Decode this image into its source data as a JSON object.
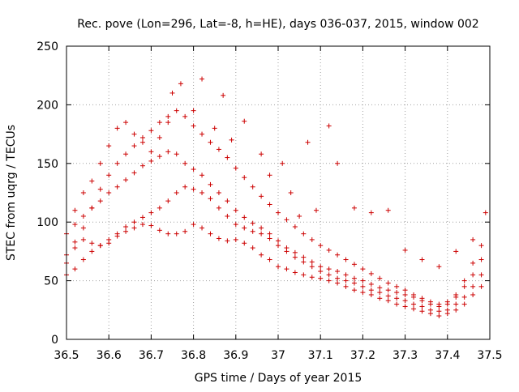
{
  "chart_data": {
    "type": "scatter",
    "title": "Rec. pove (Lon=296, Lat=-8, h=HE), days 036-037, 2015, window 002",
    "xlabel": "GPS time / Days of year 2015",
    "ylabel": "STEC from uqrg / TECUs",
    "xlim": [
      36.5,
      37.5
    ],
    "ylim": [
      0,
      250
    ],
    "xticks": [
      "36.5",
      "36.6",
      "36.7",
      "36.8",
      "36.9",
      "37",
      "37.1",
      "37.2",
      "37.3",
      "37.4",
      "37.5"
    ],
    "yticks": [
      "0",
      "50",
      "100",
      "150",
      "200",
      "250"
    ],
    "grid": true,
    "marker": "+",
    "color": "#cc0000",
    "series": [
      {
        "points": [
          [
            36.5,
            72
          ],
          [
            36.52,
            83
          ],
          [
            36.54,
            85
          ],
          [
            36.56,
            82
          ],
          [
            36.58,
            80
          ],
          [
            36.6,
            82
          ],
          [
            36.62,
            88
          ],
          [
            36.64,
            92
          ],
          [
            36.66,
            95
          ],
          [
            36.68,
            98
          ],
          [
            36.7,
            97
          ],
          [
            36.72,
            93
          ],
          [
            36.74,
            90
          ],
          [
            36.76,
            90
          ],
          [
            36.78,
            92
          ],
          [
            36.8,
            98
          ],
          [
            36.82,
            95
          ],
          [
            36.84,
            90
          ],
          [
            36.86,
            86
          ],
          [
            36.88,
            84
          ],
          [
            36.9,
            85
          ],
          [
            36.92,
            82
          ],
          [
            36.94,
            78
          ],
          [
            36.96,
            72
          ],
          [
            36.98,
            68
          ],
          [
            37.0,
            62
          ],
          [
            37.02,
            60
          ],
          [
            37.04,
            57
          ],
          [
            37.06,
            55
          ],
          [
            37.08,
            53
          ],
          [
            37.1,
            52
          ],
          [
            37.12,
            50
          ],
          [
            37.14,
            48
          ],
          [
            37.16,
            45
          ],
          [
            37.18,
            42
          ],
          [
            37.2,
            40
          ],
          [
            37.22,
            38
          ],
          [
            37.24,
            35
          ],
          [
            37.26,
            33
          ],
          [
            37.28,
            30
          ],
          [
            37.3,
            28
          ],
          [
            37.32,
            26
          ],
          [
            37.34,
            24
          ],
          [
            37.36,
            22
          ],
          [
            37.38,
            20
          ],
          [
            37.4,
            22
          ],
          [
            37.42,
            25
          ],
          [
            37.44,
            30
          ],
          [
            37.46,
            38
          ],
          [
            37.48,
            45
          ]
        ]
      },
      {
        "points": [
          [
            36.5,
            55
          ],
          [
            36.52,
            60
          ],
          [
            36.54,
            68
          ],
          [
            36.56,
            75
          ],
          [
            36.58,
            80
          ],
          [
            36.6,
            85
          ],
          [
            36.62,
            90
          ],
          [
            36.64,
            96
          ],
          [
            36.66,
            100
          ],
          [
            36.68,
            104
          ],
          [
            36.7,
            108
          ],
          [
            36.72,
            112
          ],
          [
            36.74,
            118
          ],
          [
            36.76,
            125
          ],
          [
            36.78,
            130
          ],
          [
            36.8,
            128
          ],
          [
            36.82,
            125
          ],
          [
            36.84,
            120
          ],
          [
            36.86,
            112
          ],
          [
            36.88,
            105
          ],
          [
            36.9,
            98
          ],
          [
            36.92,
            95
          ],
          [
            36.94,
            92
          ],
          [
            36.96,
            90
          ],
          [
            36.98,
            86
          ],
          [
            37.0,
            80
          ],
          [
            37.02,
            75
          ],
          [
            37.04,
            70
          ],
          [
            37.06,
            66
          ],
          [
            37.08,
            62
          ],
          [
            37.1,
            58
          ],
          [
            37.12,
            55
          ],
          [
            37.14,
            52
          ],
          [
            37.16,
            50
          ],
          [
            37.18,
            48
          ],
          [
            37.2,
            45
          ],
          [
            37.22,
            42
          ],
          [
            37.24,
            40
          ],
          [
            37.26,
            37
          ],
          [
            37.28,
            35
          ],
          [
            37.3,
            33
          ],
          [
            37.32,
            30
          ],
          [
            37.34,
            28
          ],
          [
            37.36,
            25
          ],
          [
            37.38,
            24
          ],
          [
            37.4,
            25
          ],
          [
            37.42,
            30
          ],
          [
            37.44,
            36
          ],
          [
            37.46,
            45
          ],
          [
            37.48,
            55
          ]
        ]
      },
      {
        "points": [
          [
            36.5,
            90
          ],
          [
            36.52,
            98
          ],
          [
            36.54,
            105
          ],
          [
            36.56,
            112
          ],
          [
            36.58,
            118
          ],
          [
            36.6,
            125
          ],
          [
            36.62,
            130
          ],
          [
            36.64,
            136
          ],
          [
            36.66,
            142
          ],
          [
            36.68,
            148
          ],
          [
            36.7,
            152
          ],
          [
            36.72,
            156
          ],
          [
            36.74,
            160
          ],
          [
            36.76,
            158
          ],
          [
            36.78,
            150
          ],
          [
            36.8,
            145
          ],
          [
            36.82,
            140
          ],
          [
            36.84,
            132
          ],
          [
            36.86,
            125
          ],
          [
            36.88,
            118
          ],
          [
            36.9,
            110
          ],
          [
            36.92,
            104
          ],
          [
            36.94,
            99
          ],
          [
            36.96,
            95
          ],
          [
            36.98,
            90
          ],
          [
            37.0,
            84
          ],
          [
            37.02,
            78
          ],
          [
            37.04,
            74
          ],
          [
            37.06,
            70
          ],
          [
            37.08,
            66
          ],
          [
            37.1,
            62
          ],
          [
            37.12,
            60
          ],
          [
            37.14,
            58
          ],
          [
            37.16,
            55
          ],
          [
            37.18,
            52
          ],
          [
            37.2,
            50
          ],
          [
            37.22,
            47
          ],
          [
            37.24,
            44
          ],
          [
            37.26,
            42
          ],
          [
            37.28,
            40
          ],
          [
            37.3,
            38
          ],
          [
            37.32,
            36
          ],
          [
            37.34,
            33
          ],
          [
            37.36,
            30
          ],
          [
            37.38,
            28
          ],
          [
            37.4,
            30
          ],
          [
            37.42,
            36
          ],
          [
            37.44,
            45
          ],
          [
            37.46,
            55
          ],
          [
            37.48,
            68
          ]
        ]
      },
      {
        "points": [
          [
            36.5,
            65
          ],
          [
            36.52,
            78
          ],
          [
            36.54,
            95
          ],
          [
            36.56,
            112
          ],
          [
            36.58,
            128
          ],
          [
            36.6,
            140
          ],
          [
            36.62,
            150
          ],
          [
            36.64,
            158
          ],
          [
            36.66,
            165
          ],
          [
            36.68,
            172
          ],
          [
            36.7,
            178
          ],
          [
            36.72,
            185
          ],
          [
            36.74,
            190
          ],
          [
            36.76,
            195
          ],
          [
            36.78,
            190
          ],
          [
            36.8,
            182
          ],
          [
            36.82,
            175
          ],
          [
            36.84,
            168
          ],
          [
            36.86,
            162
          ],
          [
            36.88,
            155
          ],
          [
            36.9,
            146
          ],
          [
            36.92,
            138
          ],
          [
            36.94,
            130
          ],
          [
            36.96,
            122
          ],
          [
            36.98,
            115
          ],
          [
            37.0,
            108
          ],
          [
            37.02,
            102
          ],
          [
            37.04,
            96
          ],
          [
            37.06,
            90
          ],
          [
            37.08,
            85
          ],
          [
            37.1,
            80
          ],
          [
            37.12,
            76
          ],
          [
            37.14,
            72
          ],
          [
            37.16,
            68
          ],
          [
            37.18,
            64
          ],
          [
            37.2,
            60
          ],
          [
            37.22,
            56
          ],
          [
            37.24,
            52
          ],
          [
            37.26,
            48
          ],
          [
            37.28,
            45
          ],
          [
            37.3,
            42
          ],
          [
            37.32,
            38
          ],
          [
            37.34,
            35
          ],
          [
            37.36,
            32
          ],
          [
            37.38,
            30
          ],
          [
            37.4,
            32
          ],
          [
            37.42,
            38
          ],
          [
            37.44,
            50
          ],
          [
            37.46,
            65
          ],
          [
            37.48,
            80
          ]
        ]
      },
      {
        "points": [
          [
            36.52,
            110
          ],
          [
            36.54,
            125
          ],
          [
            36.56,
            135
          ],
          [
            36.58,
            150
          ],
          [
            36.6,
            165
          ],
          [
            36.62,
            180
          ],
          [
            36.64,
            185
          ],
          [
            36.66,
            175
          ],
          [
            36.68,
            168
          ],
          [
            36.7,
            160
          ],
          [
            36.72,
            172
          ],
          [
            36.74,
            185
          ],
          [
            36.75,
            210
          ],
          [
            36.77,
            218
          ],
          [
            36.8,
            195
          ],
          [
            36.82,
            222
          ],
          [
            36.85,
            180
          ],
          [
            36.87,
            208
          ],
          [
            36.89,
            170
          ],
          [
            36.92,
            186
          ],
          [
            36.96,
            158
          ],
          [
            36.98,
            140
          ],
          [
            37.01,
            150
          ],
          [
            37.03,
            125
          ],
          [
            37.05,
            105
          ],
          [
            37.07,
            168
          ],
          [
            37.09,
            110
          ],
          [
            37.12,
            182
          ],
          [
            37.14,
            150
          ],
          [
            37.18,
            112
          ],
          [
            37.22,
            108
          ],
          [
            37.26,
            110
          ],
          [
            37.3,
            76
          ],
          [
            37.34,
            68
          ],
          [
            37.38,
            62
          ],
          [
            37.42,
            75
          ],
          [
            37.46,
            85
          ],
          [
            37.49,
            108
          ]
        ]
      }
    ]
  }
}
